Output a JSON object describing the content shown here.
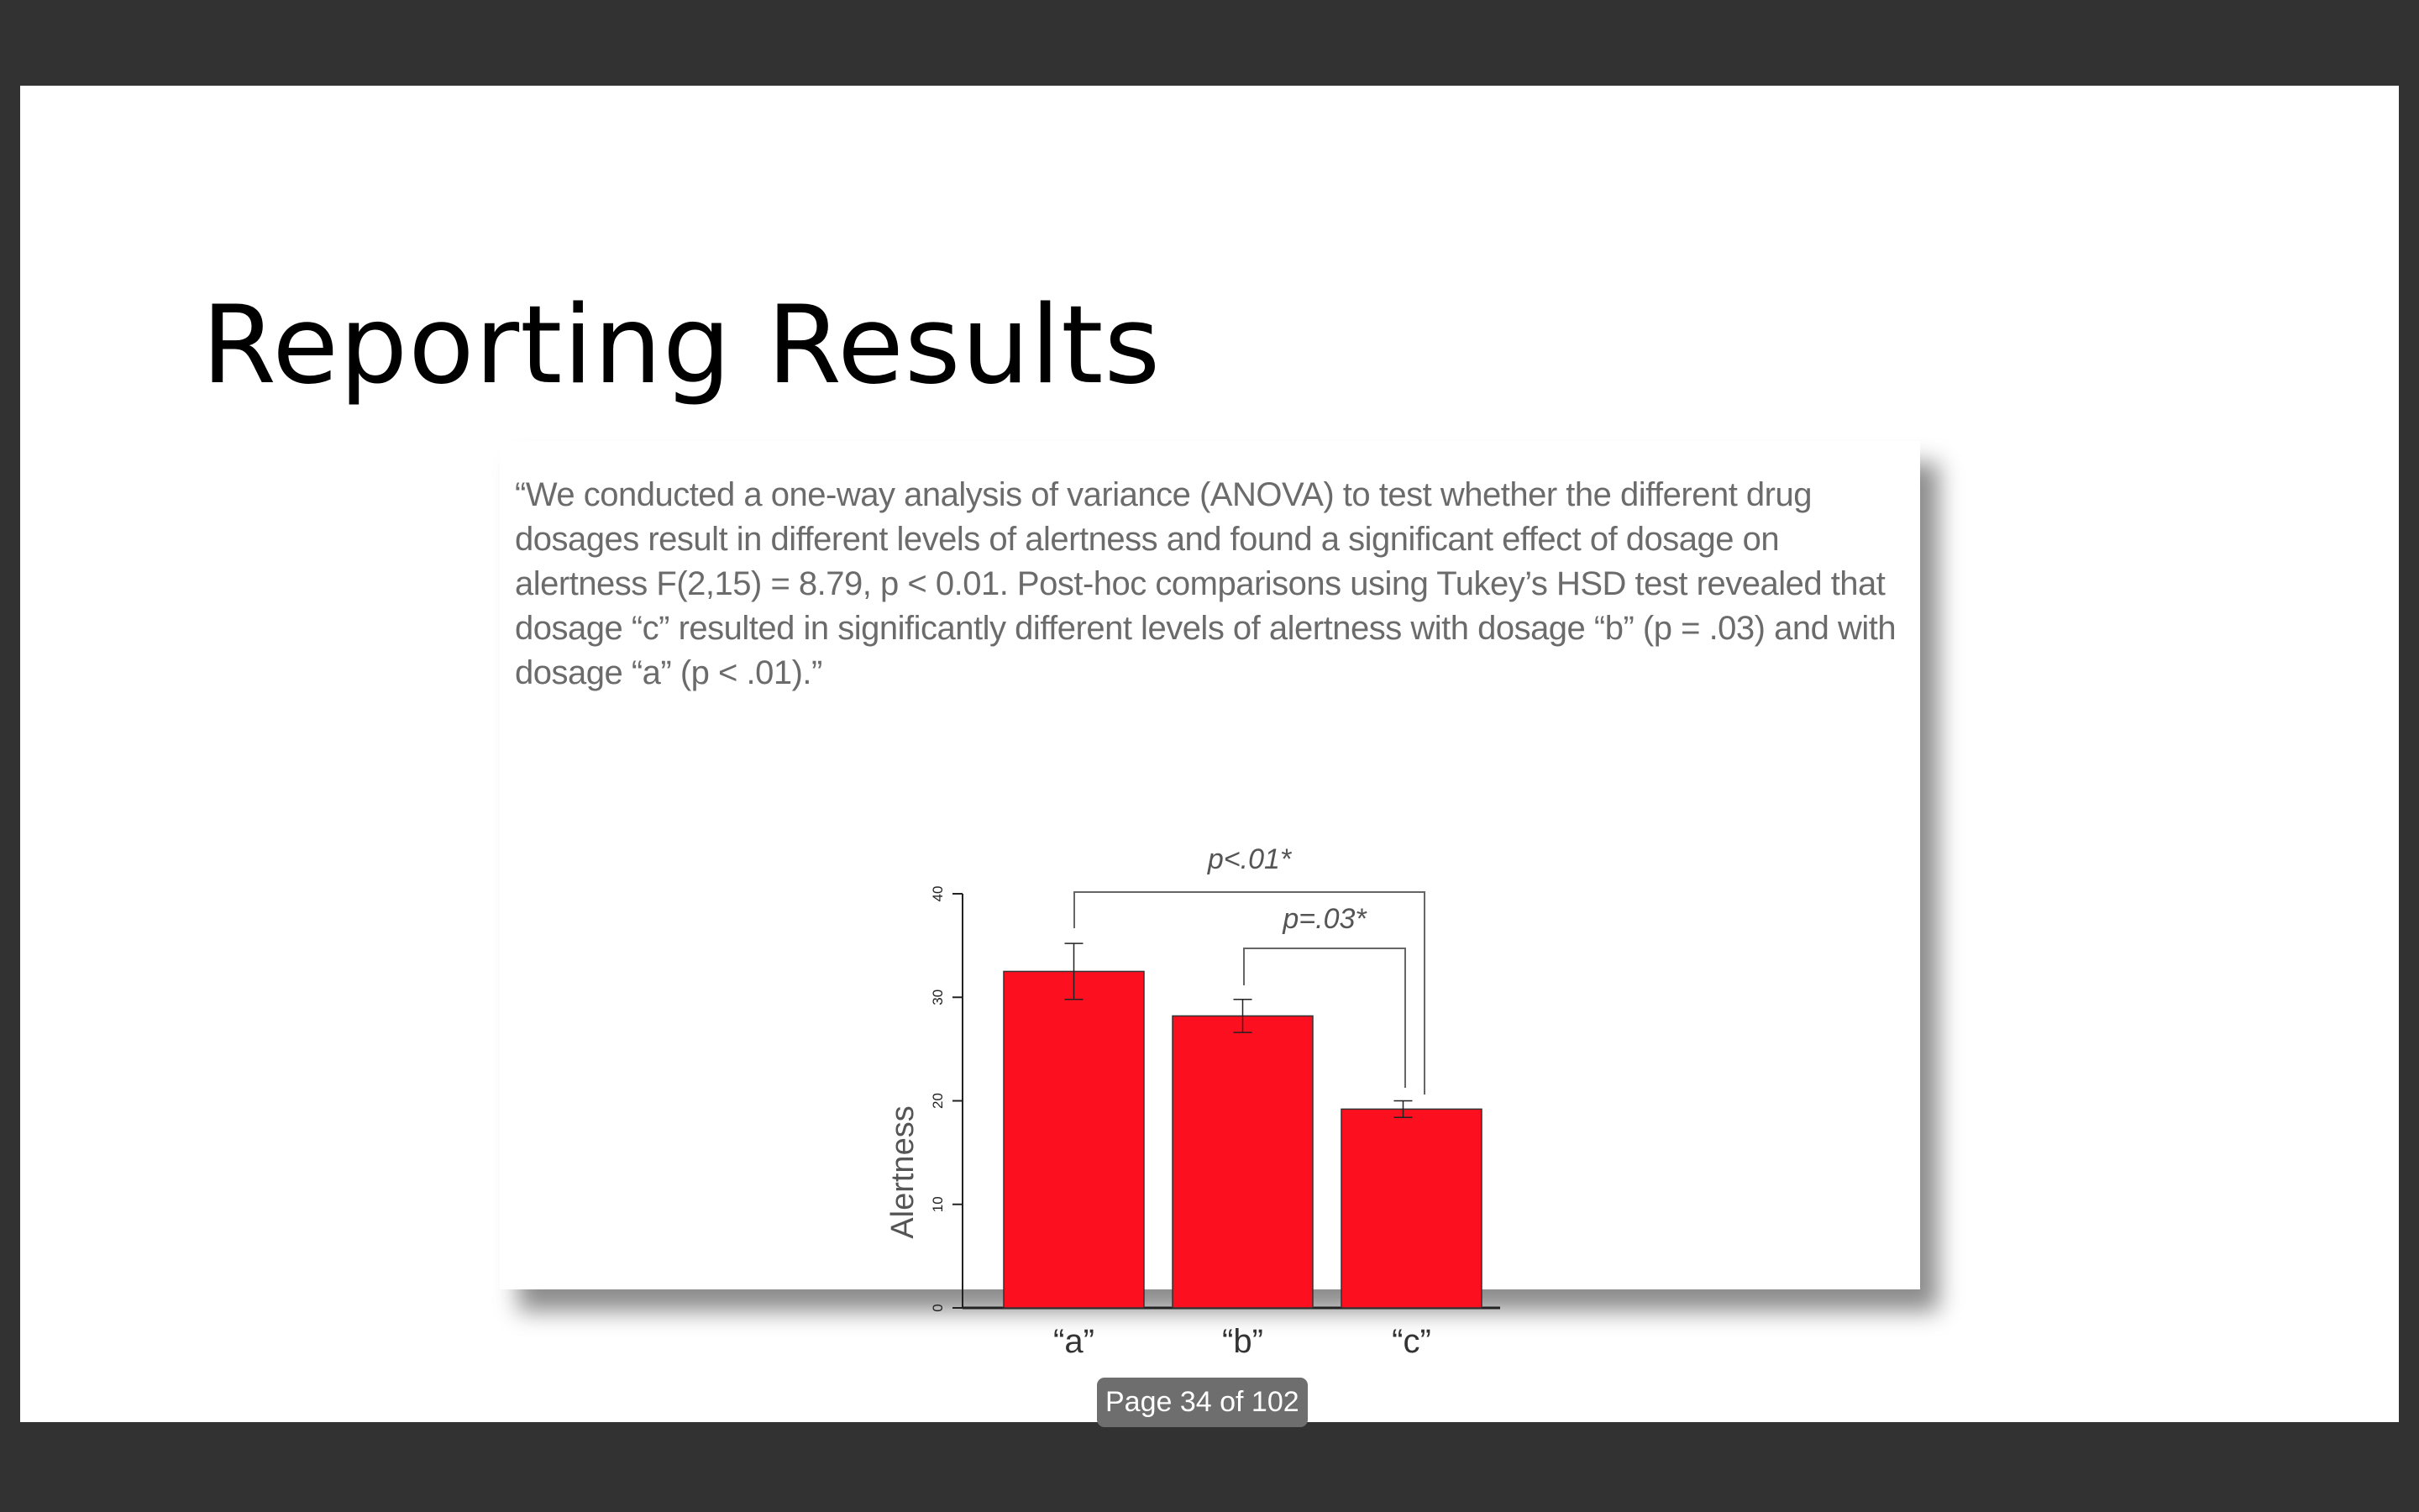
{
  "slide": {
    "title": "Reporting Results",
    "quote": "“We conducted a one-way analysis of variance (ANOVA) to test whether the different drug dosages result in different levels of alertness and found a significant effect of dosage on alertness F(2,15) = 8.79, p < 0.01. Post-hoc comparisons using Tukey’s HSD test revealed that dosage “c” resulted in significantly different levels of alertness with dosage “b” (p = .03) and with dosage “a” (p < .01).”"
  },
  "chart_data": {
    "type": "bar",
    "title": "",
    "xlabel": "",
    "ylabel": "Alertness",
    "categories": [
      "“a”",
      "“b”",
      "“c”"
    ],
    "values": [
      32.5,
      28.2,
      19.2
    ],
    "error_bars": [
      {
        "low": 29.8,
        "high": 35.2
      },
      {
        "low": 26.6,
        "high": 29.8
      },
      {
        "low": 18.4,
        "high": 20.0
      }
    ],
    "ylim": [
      0,
      40
    ],
    "yticks": [
      "0",
      "10",
      "20",
      "30",
      "40"
    ],
    "annotations": [
      {
        "from": 0,
        "to": 2,
        "label": "p<.01*"
      },
      {
        "from": 1,
        "to": 2,
        "label": "p=.03*"
      }
    ],
    "grid": false,
    "bar_color": "#fc0f1f"
  },
  "viewer": {
    "page_indicator": "Page 34 of 102"
  }
}
